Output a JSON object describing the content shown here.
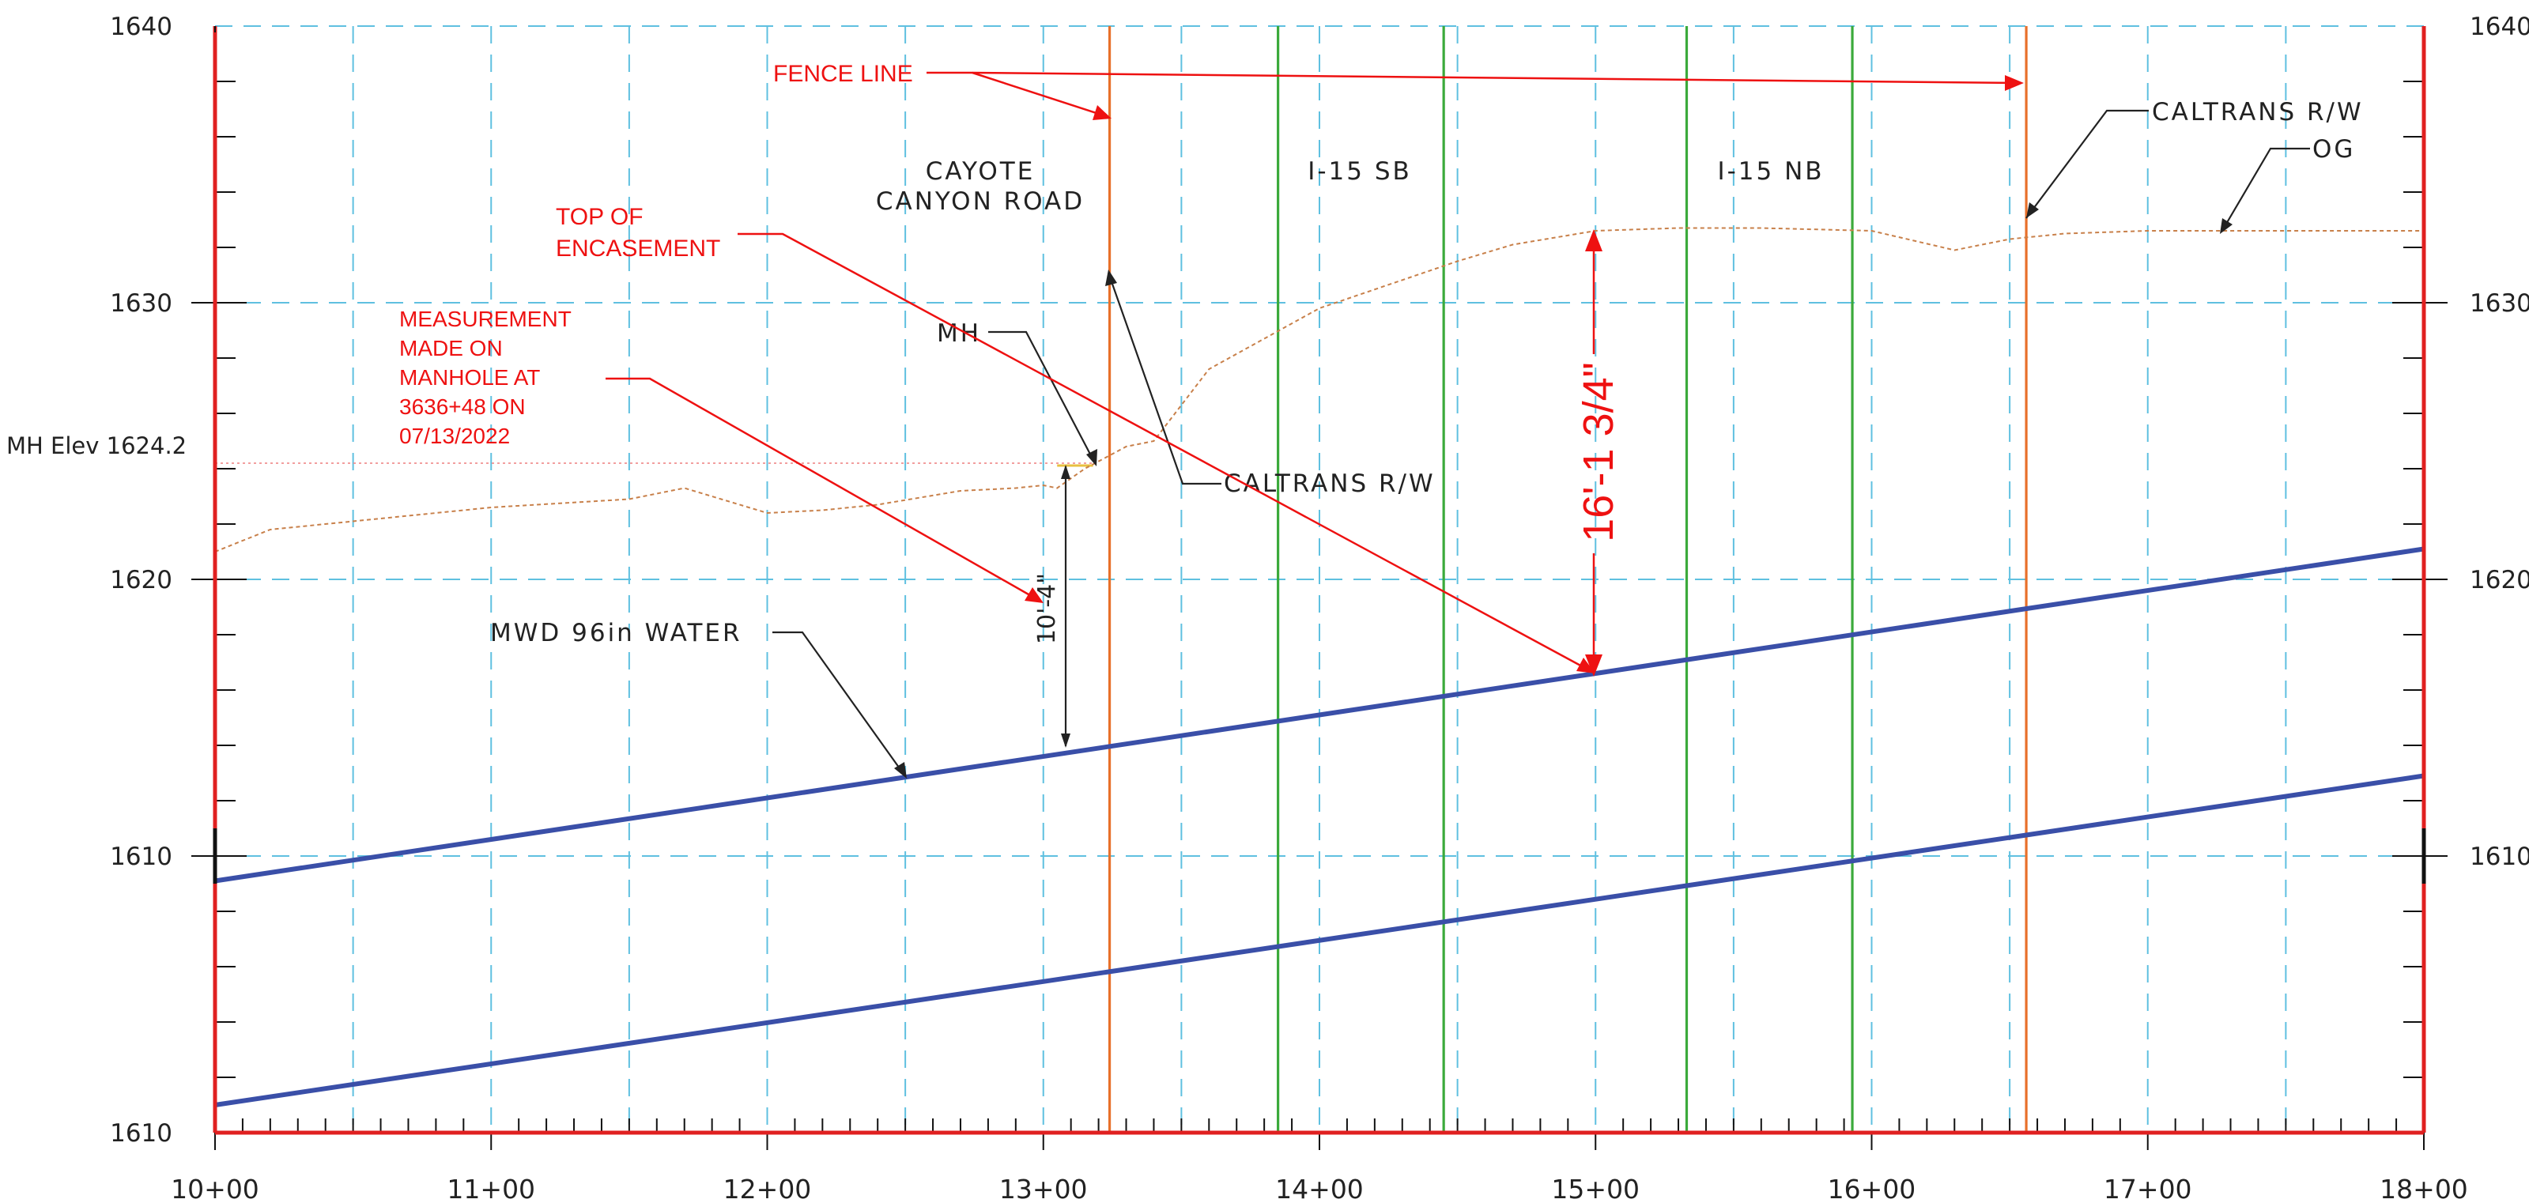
{
  "chart_data": {
    "type": "line",
    "title": "",
    "xlabel": "",
    "ylabel": "",
    "x_ticks": [
      "10+00",
      "11+00",
      "12+00",
      "13+00",
      "14+00",
      "15+00",
      "16+00",
      "17+00",
      "18+00"
    ],
    "xlim": [
      10,
      18
    ],
    "y_ticks_left": [
      "1610",
      "1610",
      "1620",
      "1630",
      "1640"
    ],
    "y_ticks_right": [
      "1610",
      "1620",
      "1630",
      "1640"
    ],
    "ylim": [
      1600,
      1640
    ],
    "grid": true,
    "series": [
      {
        "name": "MWD 96in WATER",
        "x": [
          10,
          18
        ],
        "y": [
          1609.1,
          1621.1
        ]
      },
      {
        "x": [
          10,
          18
        ],
        "y": [
          1601.0,
          1612.9
        ]
      },
      {
        "name": "OG",
        "x": [
          10.0,
          10.2,
          10.5,
          11.0,
          11.5,
          11.7,
          12.0,
          12.2,
          12.4,
          12.7,
          12.9,
          13.0,
          13.05,
          13.15,
          13.3,
          13.4,
          13.6,
          14.0,
          14.5,
          14.7,
          15.0,
          15.3,
          15.6,
          16.0,
          16.3,
          16.5,
          16.7,
          17.0,
          17.5,
          18.0
        ],
        "y": [
          1621.0,
          1621.8,
          1622.1,
          1622.6,
          1622.9,
          1623.3,
          1622.4,
          1622.5,
          1622.7,
          1623.2,
          1623.3,
          1623.4,
          1623.3,
          1624.0,
          1624.8,
          1625.0,
          1627.6,
          1629.8,
          1631.5,
          1632.1,
          1632.6,
          1632.7,
          1632.7,
          1632.6,
          1631.9,
          1632.3,
          1632.5,
          1632.6,
          1632.6,
          1632.6
        ]
      }
    ],
    "vertical_lines": [
      {
        "x": 13.24,
        "color": "#E8702A"
      },
      {
        "x": 13.85,
        "color": "#3BAA3B"
      },
      {
        "x": 14.45,
        "color": "#3BAA3B"
      },
      {
        "x": 15.33,
        "color": "#3BAA3B"
      },
      {
        "x": 15.93,
        "color": "#3BAA3B"
      },
      {
        "x": 16.56,
        "color": "#E8702A"
      }
    ],
    "mh_elev": 1624.2,
    "labels": {
      "road": [
        "CAYOTE",
        "CANYON ROAD"
      ],
      "i15sb": "I-15 SB",
      "i15nb": "I-15 NB",
      "caltrans_top": "CALTRANS R/W",
      "caltrans_mid": "CALTRANS R/W",
      "og": "OG",
      "mh": "MH",
      "mh_elev": "MH Elev 1624.2",
      "water": "MWD 96in WATER",
      "dim_small": "10'-4\"",
      "dim_big": "16'-1 3/4\"",
      "fence": "FENCE LINE",
      "top_enc": [
        "TOP OF",
        "ENCASEMENT"
      ],
      "measurement": [
        "MEASUREMENT",
        "MADE ON",
        "MANHOLE AT",
        "3636+48 ON",
        "07/13/2022"
      ]
    },
    "colors": {
      "pipe": "#3A4FA8",
      "frame": "#E02020",
      "grid": "#5FC0E0",
      "annotation": "#EE1111",
      "fence": "#E8702A",
      "row": "#3BAA3B",
      "ground": "#C8804A"
    }
  }
}
